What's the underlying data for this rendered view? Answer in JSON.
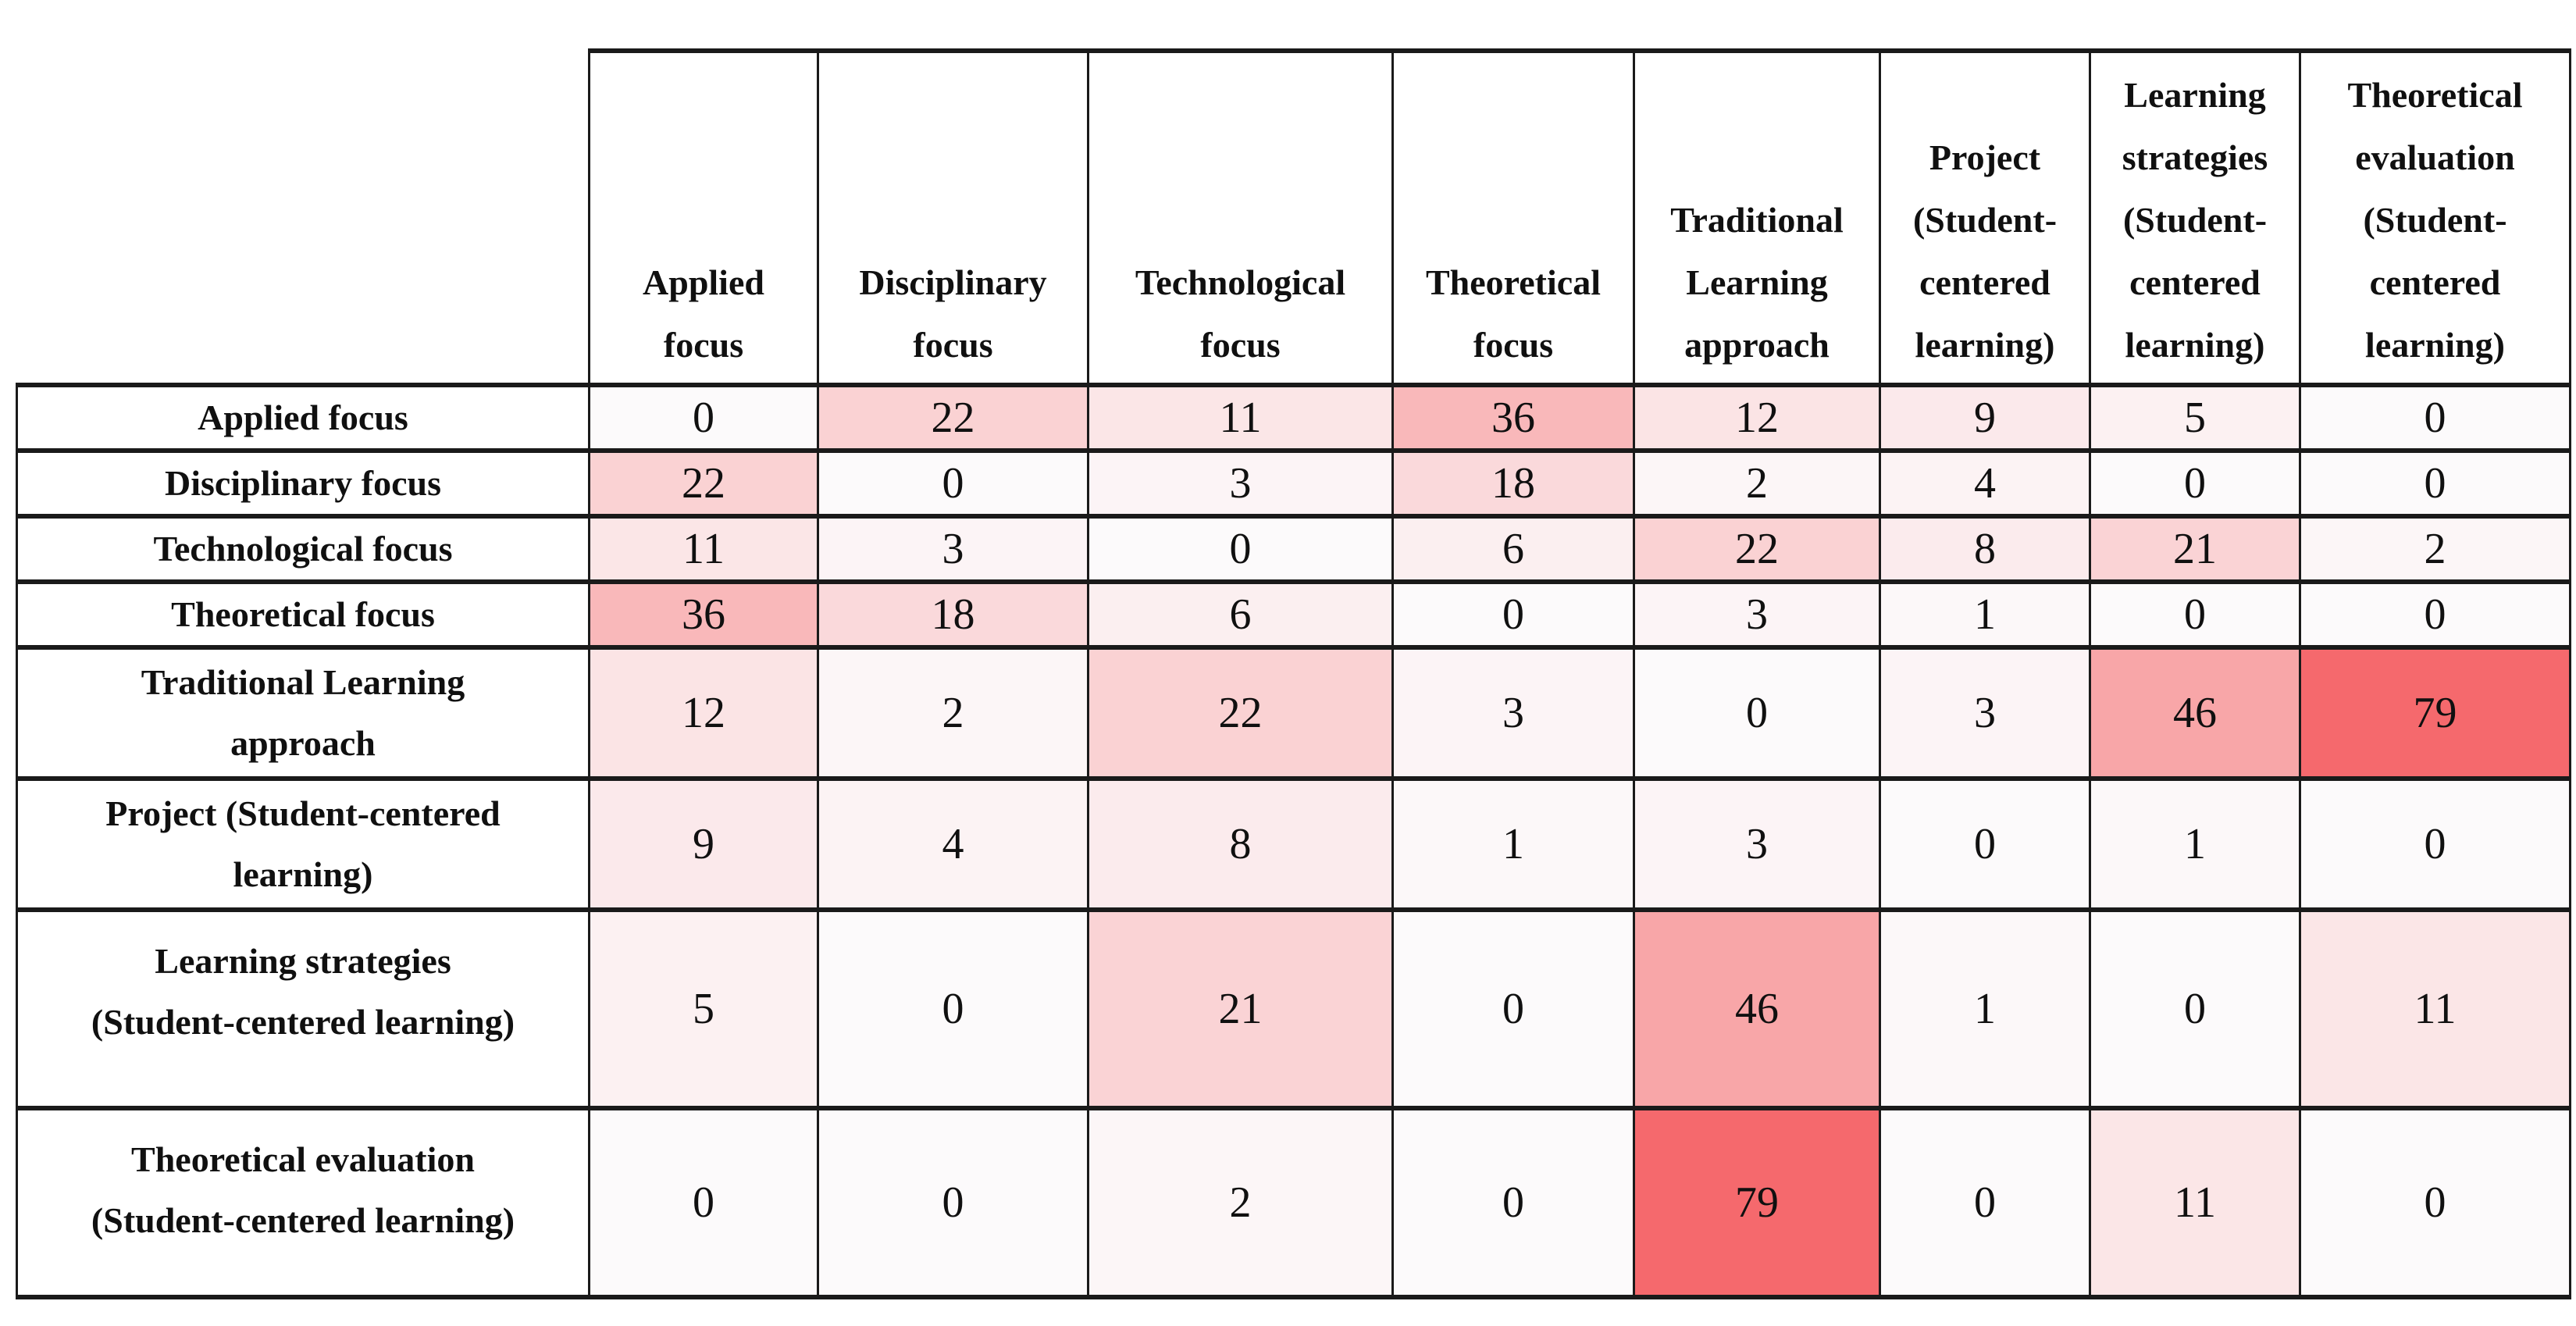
{
  "chart_data": {
    "type": "heatmap",
    "title": "",
    "x_labels": [
      "Applied focus",
      "Disciplinary focus",
      "Technological focus",
      "Theoretical focus",
      "Traditional Learning approach",
      "Project (Student-centered learning)",
      "Learning strategies (Student-centered learning)",
      "Theoretical evaluation (Student-centered learning)"
    ],
    "y_labels": [
      "Applied focus",
      "Disciplinary focus",
      "Technological focus",
      "Theoretical focus",
      "Traditional Learning approach",
      "Project (Student-centered learning)",
      "Learning strategies (Student-centered learning)",
      "Theoretical evaluation (Student-centered learning)"
    ],
    "matrix": [
      [
        0,
        22,
        11,
        36,
        12,
        9,
        5,
        0
      ],
      [
        22,
        0,
        3,
        18,
        2,
        4,
        0,
        0
      ],
      [
        11,
        3,
        0,
        6,
        22,
        8,
        21,
        2
      ],
      [
        36,
        18,
        6,
        0,
        3,
        1,
        0,
        0
      ],
      [
        12,
        2,
        22,
        3,
        0,
        3,
        46,
        79
      ],
      [
        9,
        4,
        8,
        1,
        3,
        0,
        1,
        0
      ],
      [
        5,
        0,
        21,
        0,
        46,
        1,
        0,
        11
      ],
      [
        0,
        0,
        2,
        0,
        79,
        0,
        11,
        0
      ]
    ],
    "color_scale": {
      "min": 0,
      "max": 79,
      "min_color": "#FCFAFB",
      "max_color": "#F5696D"
    },
    "legend": "none",
    "grid": "black cell borders"
  },
  "matrix_table": {
    "column_headers": [
      [
        "Applied",
        "focus"
      ],
      [
        "Disciplinary",
        "focus"
      ],
      [
        "Technological",
        "focus"
      ],
      [
        "Theoretical",
        "focus"
      ],
      [
        "Traditional",
        "Learning",
        "approach"
      ],
      [
        "Project",
        "(Student-",
        "centered",
        "learning)"
      ],
      [
        "Learning",
        "strategies",
        "(Student-",
        "centered",
        "learning)"
      ],
      [
        "Theoretical",
        "evaluation",
        "(Student-",
        "centered",
        "learning)"
      ]
    ],
    "row_headers": [
      [
        "Applied focus"
      ],
      [
        "Disciplinary focus"
      ],
      [
        "Technological focus"
      ],
      [
        "Theoretical focus"
      ],
      [
        "Traditional Learning",
        "approach"
      ],
      [
        "Project (Student-centered",
        "learning)"
      ],
      [
        "Learning strategies",
        "(Student-centered learning)"
      ],
      [
        "Theoretical evaluation",
        "(Student-centered learning)"
      ]
    ],
    "values": [
      [
        0,
        22,
        11,
        36,
        12,
        9,
        5,
        0
      ],
      [
        22,
        0,
        3,
        18,
        2,
        4,
        0,
        0
      ],
      [
        11,
        3,
        0,
        6,
        22,
        8,
        21,
        2
      ],
      [
        36,
        18,
        6,
        0,
        3,
        1,
        0,
        0
      ],
      [
        12,
        2,
        22,
        3,
        0,
        3,
        46,
        79
      ],
      [
        9,
        4,
        8,
        1,
        3,
        0,
        1,
        0
      ],
      [
        5,
        0,
        21,
        0,
        46,
        1,
        0,
        11
      ],
      [
        0,
        0,
        2,
        0,
        79,
        0,
        11,
        0
      ]
    ]
  }
}
